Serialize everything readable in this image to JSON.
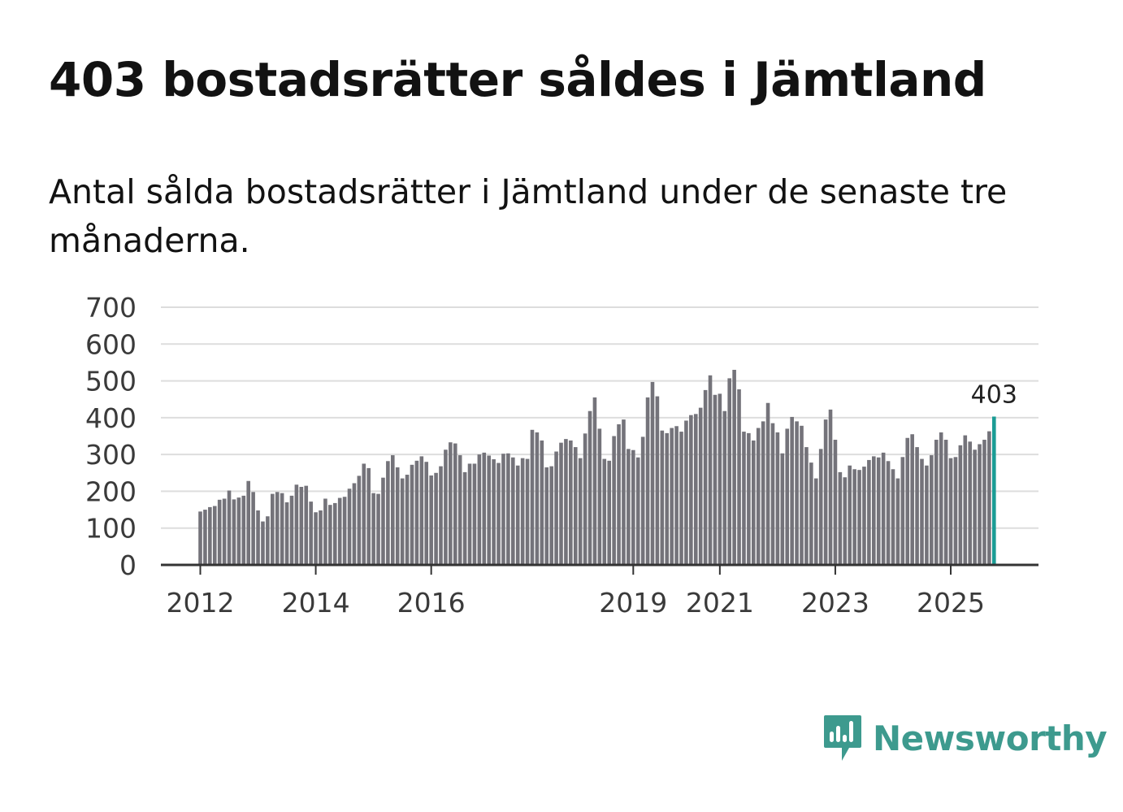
{
  "title": "403 bostadsrätter såldes i Jämtland",
  "subtitle": "Antal sålda bostadsrätter i Jämtland under de senaste tre månaderna.",
  "brand": {
    "name": "Newsworthy",
    "icon": "newsworthy-logo-icon",
    "color": "#3d9a8e"
  },
  "colors": {
    "bar": "#74737a",
    "highlight": "#1b9c95",
    "grid": "#dddddd",
    "axis": "#333333"
  },
  "chart_data": {
    "type": "bar",
    "title": "Antal sålda bostadsrätter i Jämtland",
    "xlabel": "",
    "ylabel": "",
    "ylim": [
      0,
      700
    ],
    "yticks": [
      0,
      100,
      200,
      300,
      400,
      500,
      600,
      700
    ],
    "ytick_labels": [
      "0",
      "100",
      "200",
      "300",
      "400",
      "500",
      "600",
      "700"
    ],
    "xticks": [
      {
        "label": "2012",
        "year": 2012,
        "month": 1
      },
      {
        "label": "2014",
        "year": 2014,
        "month": 1
      },
      {
        "label": "2016",
        "year": 2016,
        "month": 1
      },
      {
        "label": "2019",
        "year": 2019,
        "month": 7
      },
      {
        "label": "2021",
        "year": 2021,
        "month": 1
      },
      {
        "label": "2023",
        "year": 2023,
        "month": 1
      },
      {
        "label": "2025",
        "year": 2025,
        "month": 1
      }
    ],
    "x_start": {
      "year": 2012,
      "month": 1
    },
    "grid": true,
    "highlight_label": "403",
    "values": [
      145,
      150,
      157,
      160,
      177,
      180,
      202,
      178,
      183,
      188,
      228,
      198,
      148,
      118,
      132,
      193,
      198,
      195,
      170,
      188,
      218,
      212,
      215,
      172,
      143,
      148,
      180,
      163,
      168,
      182,
      185,
      207,
      222,
      242,
      275,
      263,
      195,
      193,
      237,
      282,
      298,
      265,
      235,
      245,
      272,
      283,
      295,
      280,
      243,
      250,
      268,
      313,
      333,
      330,
      298,
      252,
      275,
      275,
      300,
      305,
      297,
      287,
      277,
      302,
      303,
      292,
      270,
      290,
      288,
      367,
      360,
      338,
      265,
      268,
      308,
      332,
      342,
      338,
      320,
      290,
      357,
      418,
      455,
      370,
      288,
      283,
      350,
      382,
      395,
      315,
      312,
      292,
      348,
      455,
      497,
      458,
      365,
      358,
      372,
      377,
      362,
      392,
      407,
      410,
      427,
      475,
      515,
      462,
      465,
      418,
      507,
      530,
      477,
      362,
      358,
      338,
      372,
      390,
      440,
      385,
      360,
      303,
      370,
      402,
      390,
      378,
      320,
      278,
      235,
      315,
      395,
      422,
      340,
      252,
      238,
      270,
      260,
      258,
      267,
      285,
      295,
      292,
      305,
      282,
      260,
      235,
      293,
      345,
      355,
      320,
      288,
      270,
      298,
      340,
      360,
      340,
      290,
      293,
      325,
      352,
      335,
      313,
      328,
      340,
      363,
      403
    ]
  }
}
